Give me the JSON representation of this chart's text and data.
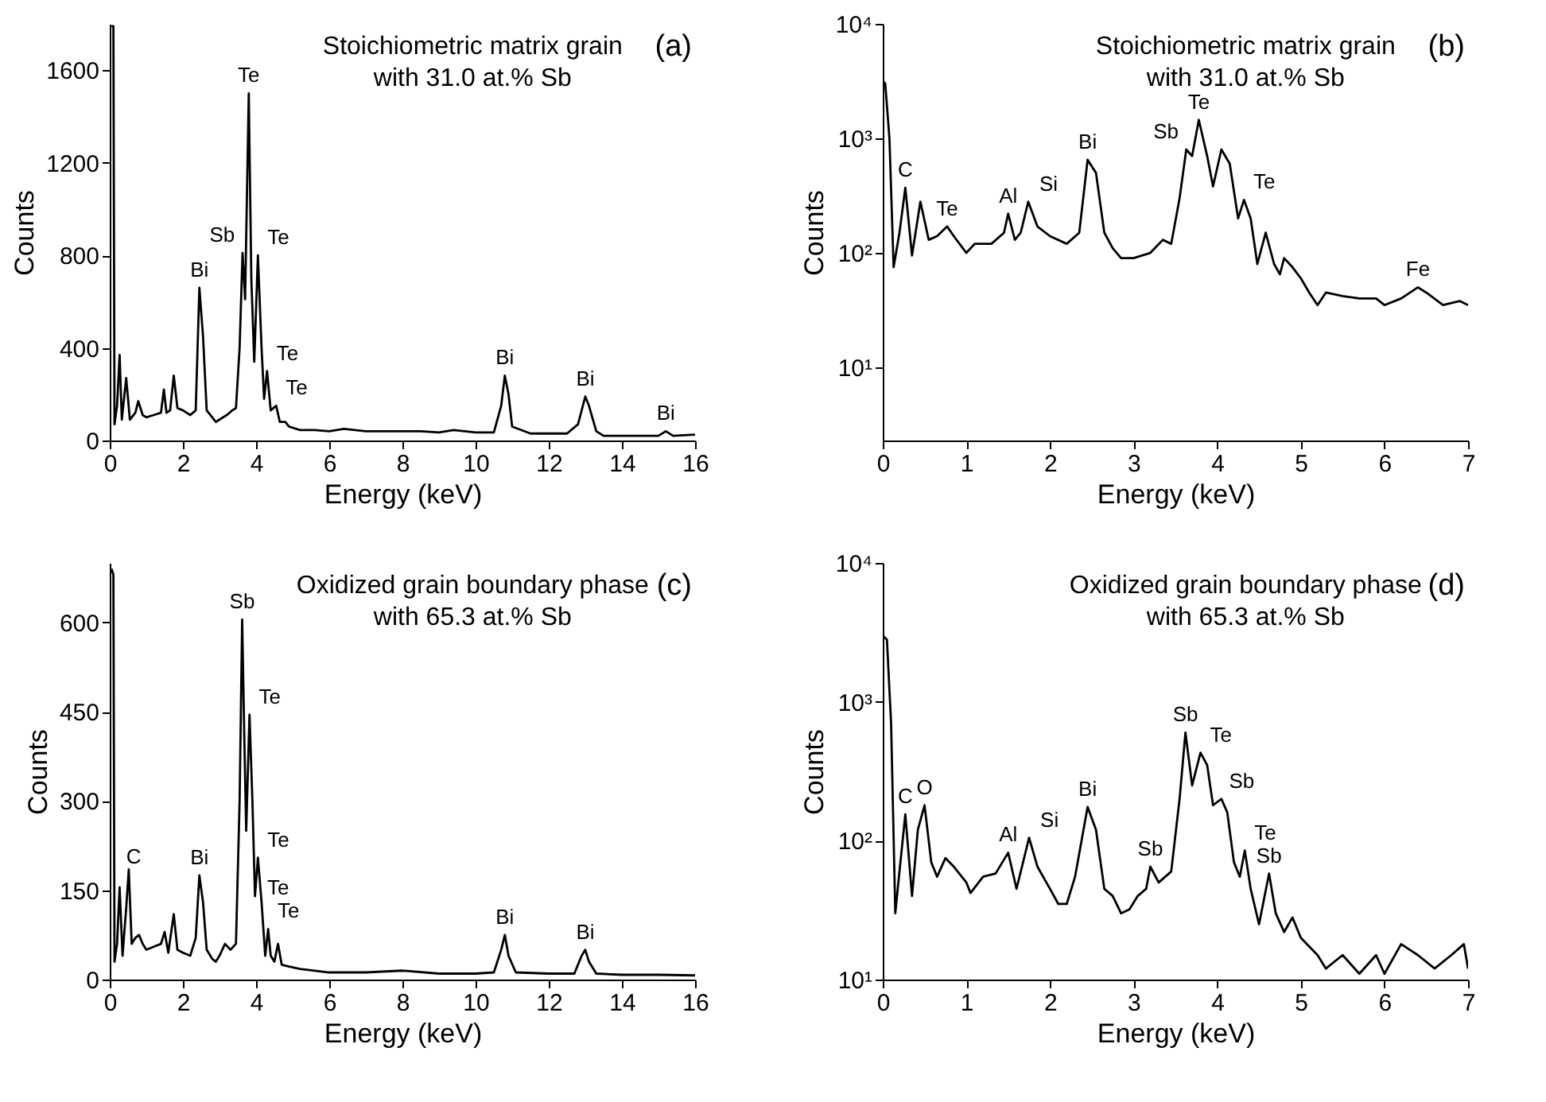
{
  "chart_data": [
    {
      "type": "line",
      "title": "Stoichiometric matrix grain",
      "subtitle": "with 31.0 at.% Sb",
      "xlabel": "Energy (keV)",
      "ylabel": "Counts",
      "x": [
        0.05,
        0.1,
        0.13,
        0.2,
        0.27,
        0.33,
        0.45,
        0.55,
        0.7,
        0.78,
        0.9,
        1.0,
        1.2,
        1.4,
        1.48,
        1.55,
        1.65,
        1.75,
        1.85,
        2.0,
        2.2,
        2.35,
        2.45,
        2.55,
        2.65,
        2.75,
        2.9,
        3.0,
        3.2,
        3.35,
        3.45,
        3.55,
        3.63,
        3.7,
        3.8,
        3.87,
        3.95,
        4.05,
        4.15,
        4.22,
        4.3,
        4.4,
        4.55,
        4.65,
        4.8,
        4.9,
        5.2,
        5.6,
        6,
        6.4,
        7,
        8,
        8.5,
        9,
        9.4,
        10,
        10.5,
        10.7,
        10.8,
        10.9,
        11.0,
        11.5,
        12.5,
        12.8,
        13.0,
        13.1,
        13.3,
        13.5,
        14,
        14.5,
        15,
        15.2,
        15.4,
        16
      ],
      "series": [
        {
          "color": "#000000",
          "values": [
            1790,
            1790,
            70,
            150,
            370,
            90,
            270,
            90,
            120,
            170,
            110,
            100,
            110,
            120,
            220,
            120,
            130,
            280,
            140,
            130,
            110,
            130,
            660,
            450,
            130,
            110,
            80,
            90,
            110,
            130,
            140,
            400,
            810,
            610,
            1500,
            700,
            340,
            800,
            400,
            180,
            300,
            130,
            150,
            80,
            80,
            60,
            45,
            45,
            40,
            50,
            40,
            40,
            40,
            35,
            45,
            35,
            35,
            150,
            280,
            200,
            60,
            30,
            30,
            70,
            190,
            150,
            40,
            20,
            20,
            20,
            20,
            40,
            20,
            25
          ]
        }
      ],
      "xlim": [
        0,
        16
      ],
      "xticks": [
        0,
        2,
        4,
        6,
        8,
        10,
        12,
        14,
        16
      ],
      "ylim": [
        0,
        1800
      ],
      "yticks": [
        0,
        400,
        800,
        1200,
        1600
      ],
      "annotations": [
        "(a)",
        {
          "text": "Te",
          "x": 3.8,
          "y": 1500
        },
        {
          "text": "Sb",
          "x": 3.63,
          "y": 810
        },
        {
          "text": "Te",
          "x": 4.05,
          "y": 800
        },
        {
          "text": "Bi",
          "x": 2.45,
          "y": 660
        },
        {
          "text": "Te",
          "x": 4.3,
          "y": 300
        },
        {
          "text": "Te",
          "x": 4.55,
          "y": 150
        },
        {
          "text": "Bi",
          "x": 10.8,
          "y": 280
        },
        {
          "text": "Bi",
          "x": 13.0,
          "y": 190
        },
        {
          "text": "Bi",
          "x": 15.2,
          "y": 40
        }
      ]
    },
    {
      "type": "line",
      "title": "Stoichiometric matrix grain",
      "subtitle": "with 31.0 at.% Sb",
      "xlabel": "Energy (keV)",
      "ylabel": "Counts",
      "log": true,
      "x": [
        0,
        0.03,
        0.08,
        0.13,
        0.2,
        0.27,
        0.35,
        0.45,
        0.55,
        0.65,
        0.77,
        0.85,
        1.0,
        1.1,
        1.3,
        1.45,
        1.5,
        1.58,
        1.65,
        1.74,
        1.85,
        2.0,
        2.2,
        2.35,
        2.45,
        2.55,
        2.65,
        2.75,
        2.85,
        3.0,
        3.2,
        3.35,
        3.45,
        3.55,
        3.63,
        3.7,
        3.78,
        3.88,
        3.95,
        4.05,
        4.15,
        4.25,
        4.32,
        4.4,
        4.48,
        4.58,
        4.68,
        4.75,
        4.8,
        4.9,
        5.0,
        5.1,
        5.2,
        5.3,
        5.5,
        5.7,
        5.9,
        6.0,
        6.2,
        6.4,
        6.5,
        6.7,
        6.9,
        7.0
      ],
      "series": [
        {
          "color": "#000000",
          "values": [
            3200,
            3000,
            1000,
            75,
            150,
            370,
            95,
            280,
            130,
            140,
            170,
            140,
            100,
            120,
            120,
            150,
            220,
            130,
            150,
            280,
            170,
            140,
            120,
            150,
            650,
            500,
            150,
            110,
            90,
            90,
            100,
            130,
            120,
            300,
            800,
            700,
            1450,
            700,
            380,
            800,
            600,
            200,
            290,
            200,
            80,
            150,
            80,
            65,
            90,
            75,
            60,
            45,
            35,
            45,
            42,
            40,
            40,
            35,
            40,
            50,
            45,
            35,
            38,
            35
          ]
        }
      ],
      "xlim": [
        0,
        7
      ],
      "xticks": [
        0,
        1,
        2,
        3,
        4,
        5,
        6,
        7
      ],
      "ylim": [
        2.3,
        10000
      ],
      "yticks": [
        {
          "value": 10,
          "label": "10¹"
        },
        {
          "value": 100,
          "label": "10²"
        },
        {
          "value": 1000,
          "label": "10³"
        },
        {
          "value": 10000,
          "label": "10⁴"
        }
      ],
      "annotations": [
        "(b)",
        {
          "text": "C",
          "x": 0.27,
          "y": 370
        },
        {
          "text": "Te",
          "x": 0.77,
          "y": 170
        },
        {
          "text": "Al",
          "x": 1.5,
          "y": 220
        },
        {
          "text": "Si",
          "x": 1.74,
          "y": 280
        },
        {
          "text": "Bi",
          "x": 2.45,
          "y": 650
        },
        {
          "text": "Sb",
          "x": 3.63,
          "y": 800
        },
        {
          "text": "Te",
          "x": 3.78,
          "y": 1450
        },
        {
          "text": "Te",
          "x": 4.32,
          "y": 290
        },
        {
          "text": "Fe",
          "x": 6.4,
          "y": 50
        }
      ]
    },
    {
      "type": "line",
      "title": "Oxidized grain boundary phase",
      "subtitle": "with 65.3 at.% Sb",
      "xlabel": "Energy (keV)",
      "ylabel": "Counts",
      "x": [
        0.05,
        0.1,
        0.13,
        0.2,
        0.27,
        0.35,
        0.45,
        0.52,
        0.6,
        0.7,
        0.8,
        0.9,
        1.0,
        1.2,
        1.4,
        1.5,
        1.6,
        1.75,
        1.85,
        2.0,
        2.2,
        2.35,
        2.45,
        2.55,
        2.65,
        2.8,
        2.9,
        3.0,
        3.15,
        3.3,
        3.45,
        3.55,
        3.62,
        3.68,
        3.73,
        3.82,
        3.9,
        3.97,
        4.05,
        4.15,
        4.25,
        4.33,
        4.4,
        4.5,
        4.6,
        4.7,
        4.9,
        5.2,
        6,
        7,
        8,
        9,
        10,
        10.5,
        10.7,
        10.8,
        10.9,
        11.1,
        12,
        12.7,
        12.9,
        13.0,
        13.1,
        13.3,
        14,
        15,
        16
      ],
      "series": [
        {
          "color": "#000000",
          "values": [
            690,
            680,
            30,
            60,
            155,
            40,
            120,
            185,
            60,
            70,
            75,
            60,
            50,
            55,
            60,
            80,
            45,
            110,
            50,
            45,
            40,
            70,
            175,
            130,
            50,
            35,
            30,
            40,
            60,
            50,
            60,
            300,
            605,
            400,
            250,
            445,
            300,
            140,
            205,
            130,
            40,
            85,
            40,
            30,
            60,
            25,
            22,
            18,
            12,
            12,
            15,
            10,
            10,
            12,
            50,
            75,
            40,
            12,
            10,
            10,
            40,
            50,
            30,
            10,
            8,
            8,
            7
          ]
        }
      ],
      "xlim": [
        0,
        16
      ],
      "xticks": [
        0,
        2,
        4,
        6,
        8,
        10,
        12,
        14,
        16
      ],
      "ylim": [
        0,
        700
      ],
      "yticks": [
        0,
        150,
        300,
        450,
        600
      ],
      "annotations": [
        "(c)",
        {
          "text": "Sb",
          "x": 3.62,
          "y": 605
        },
        {
          "text": "Te",
          "x": 3.82,
          "y": 445
        },
        {
          "text": "Te",
          "x": 4.05,
          "y": 205
        },
        {
          "text": "Te",
          "x": 4.33,
          "y": 85
        },
        {
          "text": "Te",
          "x": 4.6,
          "y": 60
        },
        {
          "text": "C",
          "x": 0.27,
          "y": 155
        },
        {
          "text": "Bi",
          "x": 2.45,
          "y": 175
        },
        {
          "text": "Bi",
          "x": 10.8,
          "y": 75
        },
        {
          "text": "Bi",
          "x": 13.0,
          "y": 50
        }
      ]
    },
    {
      "type": "line",
      "title": "Oxidized grain boundary phase",
      "subtitle": "with 65.3 at.% Sb",
      "xlabel": "Energy (keV)",
      "ylabel": "Counts",
      "log": true,
      "x": [
        0,
        0.05,
        0.1,
        0.15,
        0.2,
        0.27,
        0.35,
        0.42,
        0.5,
        0.58,
        0.65,
        0.75,
        0.85,
        1.0,
        1.05,
        1.2,
        1.35,
        1.5,
        1.6,
        1.75,
        1.85,
        2.0,
        2.1,
        2.2,
        2.3,
        2.45,
        2.55,
        2.65,
        2.75,
        2.85,
        2.95,
        3.05,
        3.15,
        3.2,
        3.3,
        3.45,
        3.55,
        3.62,
        3.7,
        3.8,
        3.88,
        3.95,
        4.05,
        4.12,
        4.2,
        4.27,
        4.33,
        4.4,
        4.5,
        4.62,
        4.7,
        4.8,
        4.9,
        5.0,
        5.2,
        5.3,
        5.5,
        5.7,
        5.9,
        6.0,
        6.2,
        6.4,
        6.6,
        6.8,
        6.95,
        7.0
      ],
      "series": [
        {
          "color": "#000000",
          "values": [
            3000,
            2800,
            700,
            30,
            60,
            155,
            40,
            120,
            180,
            70,
            55,
            75,
            65,
            50,
            42,
            55,
            58,
            82,
            45,
            105,
            65,
            45,
            35,
            35,
            55,
            175,
            120,
            45,
            40,
            30,
            32,
            40,
            45,
            65,
            50,
            60,
            200,
            600,
            250,
            430,
            350,
            180,
            200,
            160,
            70,
            55,
            85,
            45,
            25,
            58,
            30,
            22,
            28,
            20,
            15,
            12,
            15,
            11,
            15,
            11,
            18,
            15,
            12,
            15,
            18,
            12
          ]
        }
      ],
      "xlim": [
        0,
        7
      ],
      "xticks": [
        0,
        1,
        2,
        3,
        4,
        5,
        6,
        7
      ],
      "ylim": [
        10,
        10000
      ],
      "yticks": [
        {
          "value": 10,
          "label": "10¹"
        },
        {
          "value": 100,
          "label": "10²"
        },
        {
          "value": 1000,
          "label": "10³"
        },
        {
          "value": 10000,
          "label": "10⁴"
        }
      ],
      "annotations": [
        "(d)",
        {
          "text": "C",
          "x": 0.27,
          "y": 155
        },
        {
          "text": "O",
          "x": 0.5,
          "y": 180
        },
        {
          "text": "Al",
          "x": 1.5,
          "y": 82
        },
        {
          "text": "Si",
          "x": 1.75,
          "y": 105
        },
        {
          "text": "Bi",
          "x": 2.45,
          "y": 175
        },
        {
          "text": "Sb",
          "x": 3.2,
          "y": 65
        },
        {
          "text": "Sb",
          "x": 3.62,
          "y": 600
        },
        {
          "text": "Te",
          "x": 3.8,
          "y": 430
        },
        {
          "text": "Sb",
          "x": 4.05,
          "y": 200
        },
        {
          "text": "Te",
          "x": 4.33,
          "y": 85
        },
        {
          "text": "Sb",
          "x": 4.62,
          "y": 58
        }
      ]
    }
  ]
}
